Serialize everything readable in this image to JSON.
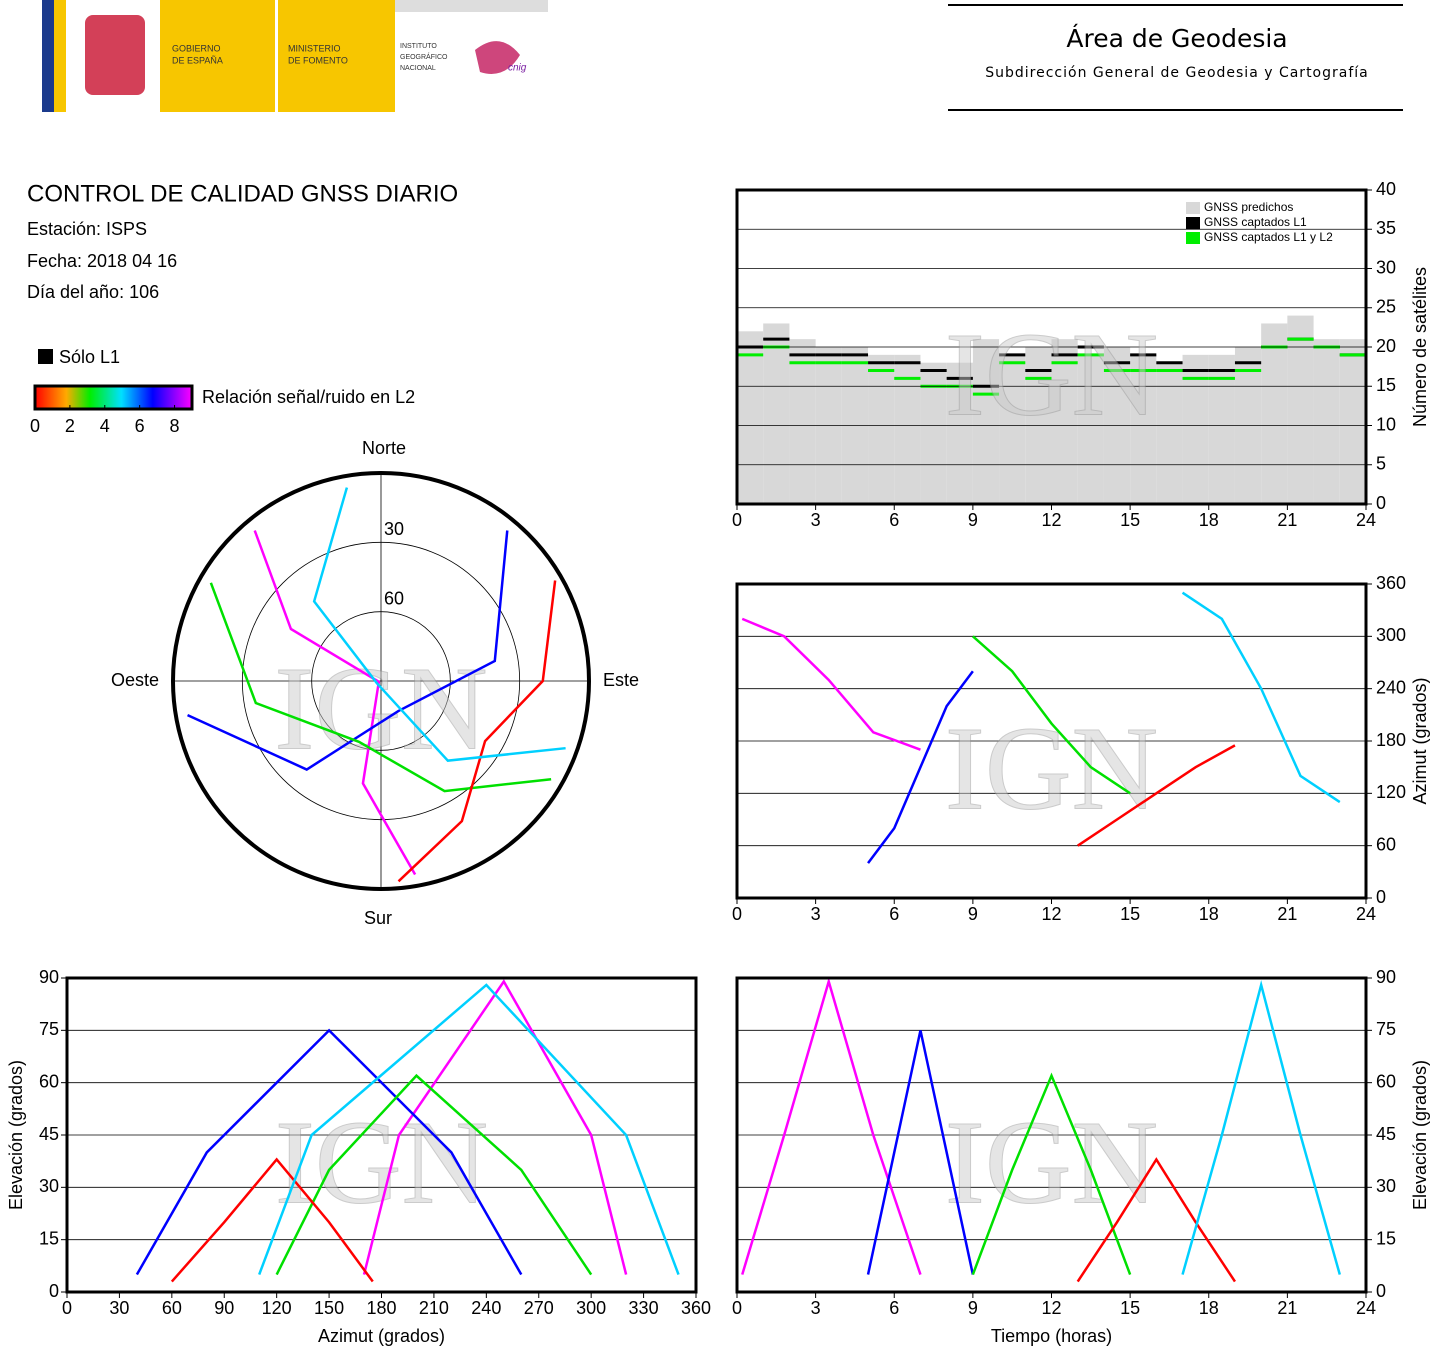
{
  "header": {
    "logos": [
      [
        "GOBIERNO",
        "DE ESPAÑA"
      ],
      [
        "MINISTERIO",
        "DE FOMENTO"
      ],
      [
        "INSTITUTO",
        "GEOGRÁFICO",
        "NACIONAL"
      ]
    ],
    "logo_mark": "cnig",
    "title": "Área de Geodesia",
    "subtitle": "Subdirección General de Geodesia y Cartografía"
  },
  "info": {
    "title": "CONTROL DE CALIDAD GNSS DIARIO",
    "station": "Estación: ISPS",
    "date": "Fecha: 2018 04 16",
    "doy": "Día del año: 106"
  },
  "legend": {
    "l1": "Sólo L1",
    "snr": "Relación señal/ruido en L2",
    "snr_ticks": [
      0,
      2,
      4,
      6,
      8
    ],
    "snr_lim": [
      0,
      9
    ]
  },
  "chart_data": [
    {
      "type": "polar",
      "directions": {
        "north": "Norte",
        "south": "Sur",
        "west": "Oeste",
        "east": "Este"
      },
      "rticks": [
        30,
        60
      ],
      "watermark": "IGN",
      "series": [
        {
          "color": "#ff00ff",
          "azimuth": [
            320,
            300,
            250,
            190,
            170
          ],
          "elevation": [
            5,
            45,
            89,
            45,
            5
          ]
        },
        {
          "color": "#0000ff",
          "azimuth": [
            40,
            80,
            150,
            220,
            260
          ],
          "elevation": [
            5,
            40,
            75,
            40,
            5
          ]
        },
        {
          "color": "#00e000",
          "azimuth": [
            300,
            260,
            200,
            150,
            120
          ],
          "elevation": [
            5,
            35,
            62,
            35,
            5
          ]
        },
        {
          "color": "#ff0000",
          "azimuth": [
            60,
            90,
            120,
            150,
            175
          ],
          "elevation": [
            3,
            20,
            38,
            20,
            3
          ]
        },
        {
          "color": "#00d0ff",
          "azimuth": [
            350,
            320,
            240,
            140,
            110
          ],
          "elevation": [
            5,
            45,
            88,
            45,
            5
          ]
        }
      ]
    },
    {
      "type": "step",
      "ylabel": "Número de satélites",
      "y_axis_side": "right",
      "xlim": [
        0,
        24
      ],
      "xticks": [
        0,
        3,
        6,
        9,
        12,
        15,
        18,
        21,
        24
      ],
      "ylim": [
        0,
        40
      ],
      "yticks": [
        0,
        5,
        10,
        15,
        20,
        25,
        30,
        35,
        40
      ],
      "grid": true,
      "legend": "upper right",
      "watermark": "IGN",
      "x": [
        0,
        1,
        2,
        3,
        4,
        5,
        6,
        7,
        8,
        9,
        10,
        11,
        12,
        13,
        14,
        15,
        16,
        17,
        18,
        19,
        20,
        21,
        22,
        23
      ],
      "series": [
        {
          "name": "GNSS predichos",
          "color": "#d8d8d8",
          "area": true,
          "values": [
            22,
            23,
            21,
            20,
            20,
            19,
            19,
            18,
            18,
            21,
            19,
            20,
            21,
            19,
            20,
            19,
            18,
            19,
            19,
            20,
            23,
            24,
            21,
            21
          ]
        },
        {
          "name": "GNSS captados L1",
          "color": "#000000",
          "values": [
            20,
            21,
            19,
            19,
            19,
            18,
            18,
            17,
            16,
            15,
            19,
            17,
            19,
            20,
            18,
            19,
            18,
            17,
            17,
            18,
            20,
            21,
            20,
            19
          ]
        },
        {
          "name": "GNSS captados L1 y L2",
          "color": "#00ee00",
          "values": [
            19,
            20,
            18,
            18,
            18,
            17,
            16,
            15,
            15,
            14,
            18,
            16,
            18,
            19,
            17,
            17,
            17,
            16,
            16,
            17,
            20,
            21,
            20,
            19
          ]
        }
      ]
    },
    {
      "type": "line",
      "ylabel": "Azimut (grados)",
      "y_axis_side": "right",
      "xlim": [
        0,
        24
      ],
      "xticks": [
        0,
        3,
        6,
        9,
        12,
        15,
        18,
        21,
        24
      ],
      "ylim": [
        0,
        360
      ],
      "yticks": [
        0,
        60,
        120,
        180,
        240,
        300,
        360
      ],
      "grid": true,
      "watermark": "IGN",
      "series": [
        {
          "color": "#ff00ff",
          "x": [
            0.2,
            1.8,
            3.5,
            5.2,
            7
          ],
          "values": [
            320,
            300,
            250,
            190,
            170
          ]
        },
        {
          "color": "#0000ff",
          "x": [
            5,
            6,
            7,
            8,
            9
          ],
          "values": [
            40,
            80,
            150,
            220,
            260
          ]
        },
        {
          "color": "#00e000",
          "x": [
            9,
            10.5,
            12,
            13.5,
            15
          ],
          "values": [
            300,
            260,
            200,
            150,
            120
          ]
        },
        {
          "color": "#ff0000",
          "x": [
            13,
            14.5,
            16,
            17.5,
            19
          ],
          "values": [
            60,
            90,
            120,
            150,
            175
          ]
        },
        {
          "color": "#00d0ff",
          "x": [
            17,
            18.5,
            20,
            21.5,
            23
          ],
          "values": [
            350,
            320,
            240,
            140,
            110
          ]
        }
      ]
    },
    {
      "type": "line",
      "xlabel": "Azimut (grados)",
      "ylabel": "Elevación (grados)",
      "y_axis_side": "left",
      "xlim": [
        0,
        360
      ],
      "xticks": [
        0,
        30,
        60,
        90,
        120,
        150,
        180,
        210,
        240,
        270,
        300,
        330,
        360
      ],
      "ylim": [
        0,
        90
      ],
      "yticks": [
        0,
        15,
        30,
        45,
        60,
        75,
        90
      ],
      "grid": true,
      "watermark": "IGN",
      "series": [
        {
          "color": "#ff00ff",
          "x": [
            320,
            300,
            250,
            190,
            170
          ],
          "values": [
            5,
            45,
            89,
            45,
            5
          ]
        },
        {
          "color": "#0000ff",
          "x": [
            40,
            80,
            150,
            220,
            260
          ],
          "values": [
            5,
            40,
            75,
            40,
            5
          ]
        },
        {
          "color": "#00e000",
          "x": [
            300,
            260,
            200,
            150,
            120
          ],
          "values": [
            5,
            35,
            62,
            35,
            5
          ]
        },
        {
          "color": "#ff0000",
          "x": [
            60,
            90,
            120,
            150,
            175
          ],
          "values": [
            3,
            20,
            38,
            20,
            3
          ]
        },
        {
          "color": "#00d0ff",
          "x": [
            350,
            320,
            240,
            140,
            110
          ],
          "values": [
            5,
            45,
            88,
            45,
            5
          ]
        }
      ]
    },
    {
      "type": "line",
      "xlabel": "Tiempo (horas)",
      "ylabel": "Elevación (grados)",
      "y_axis_side": "right",
      "xlim": [
        0,
        24
      ],
      "xticks": [
        0,
        3,
        6,
        9,
        12,
        15,
        18,
        21,
        24
      ],
      "ylim": [
        0,
        90
      ],
      "yticks": [
        0,
        15,
        30,
        45,
        60,
        75,
        90
      ],
      "grid": true,
      "watermark": "IGN",
      "series": [
        {
          "color": "#ff00ff",
          "x": [
            0.2,
            1.8,
            3.5,
            5.2,
            7
          ],
          "values": [
            5,
            45,
            89,
            45,
            5
          ]
        },
        {
          "color": "#0000ff",
          "x": [
            5,
            6,
            7,
            8,
            9
          ],
          "values": [
            5,
            40,
            75,
            40,
            5
          ]
        },
        {
          "color": "#00e000",
          "x": [
            9,
            10.5,
            12,
            13.5,
            15
          ],
          "values": [
            5,
            35,
            62,
            35,
            5
          ]
        },
        {
          "color": "#ff0000",
          "x": [
            13,
            14.5,
            16,
            17.5,
            19
          ],
          "values": [
            3,
            20,
            38,
            20,
            3
          ]
        },
        {
          "color": "#00d0ff",
          "x": [
            17,
            18.5,
            20,
            21.5,
            23
          ],
          "values": [
            5,
            45,
            88,
            45,
            5
          ]
        }
      ]
    }
  ]
}
